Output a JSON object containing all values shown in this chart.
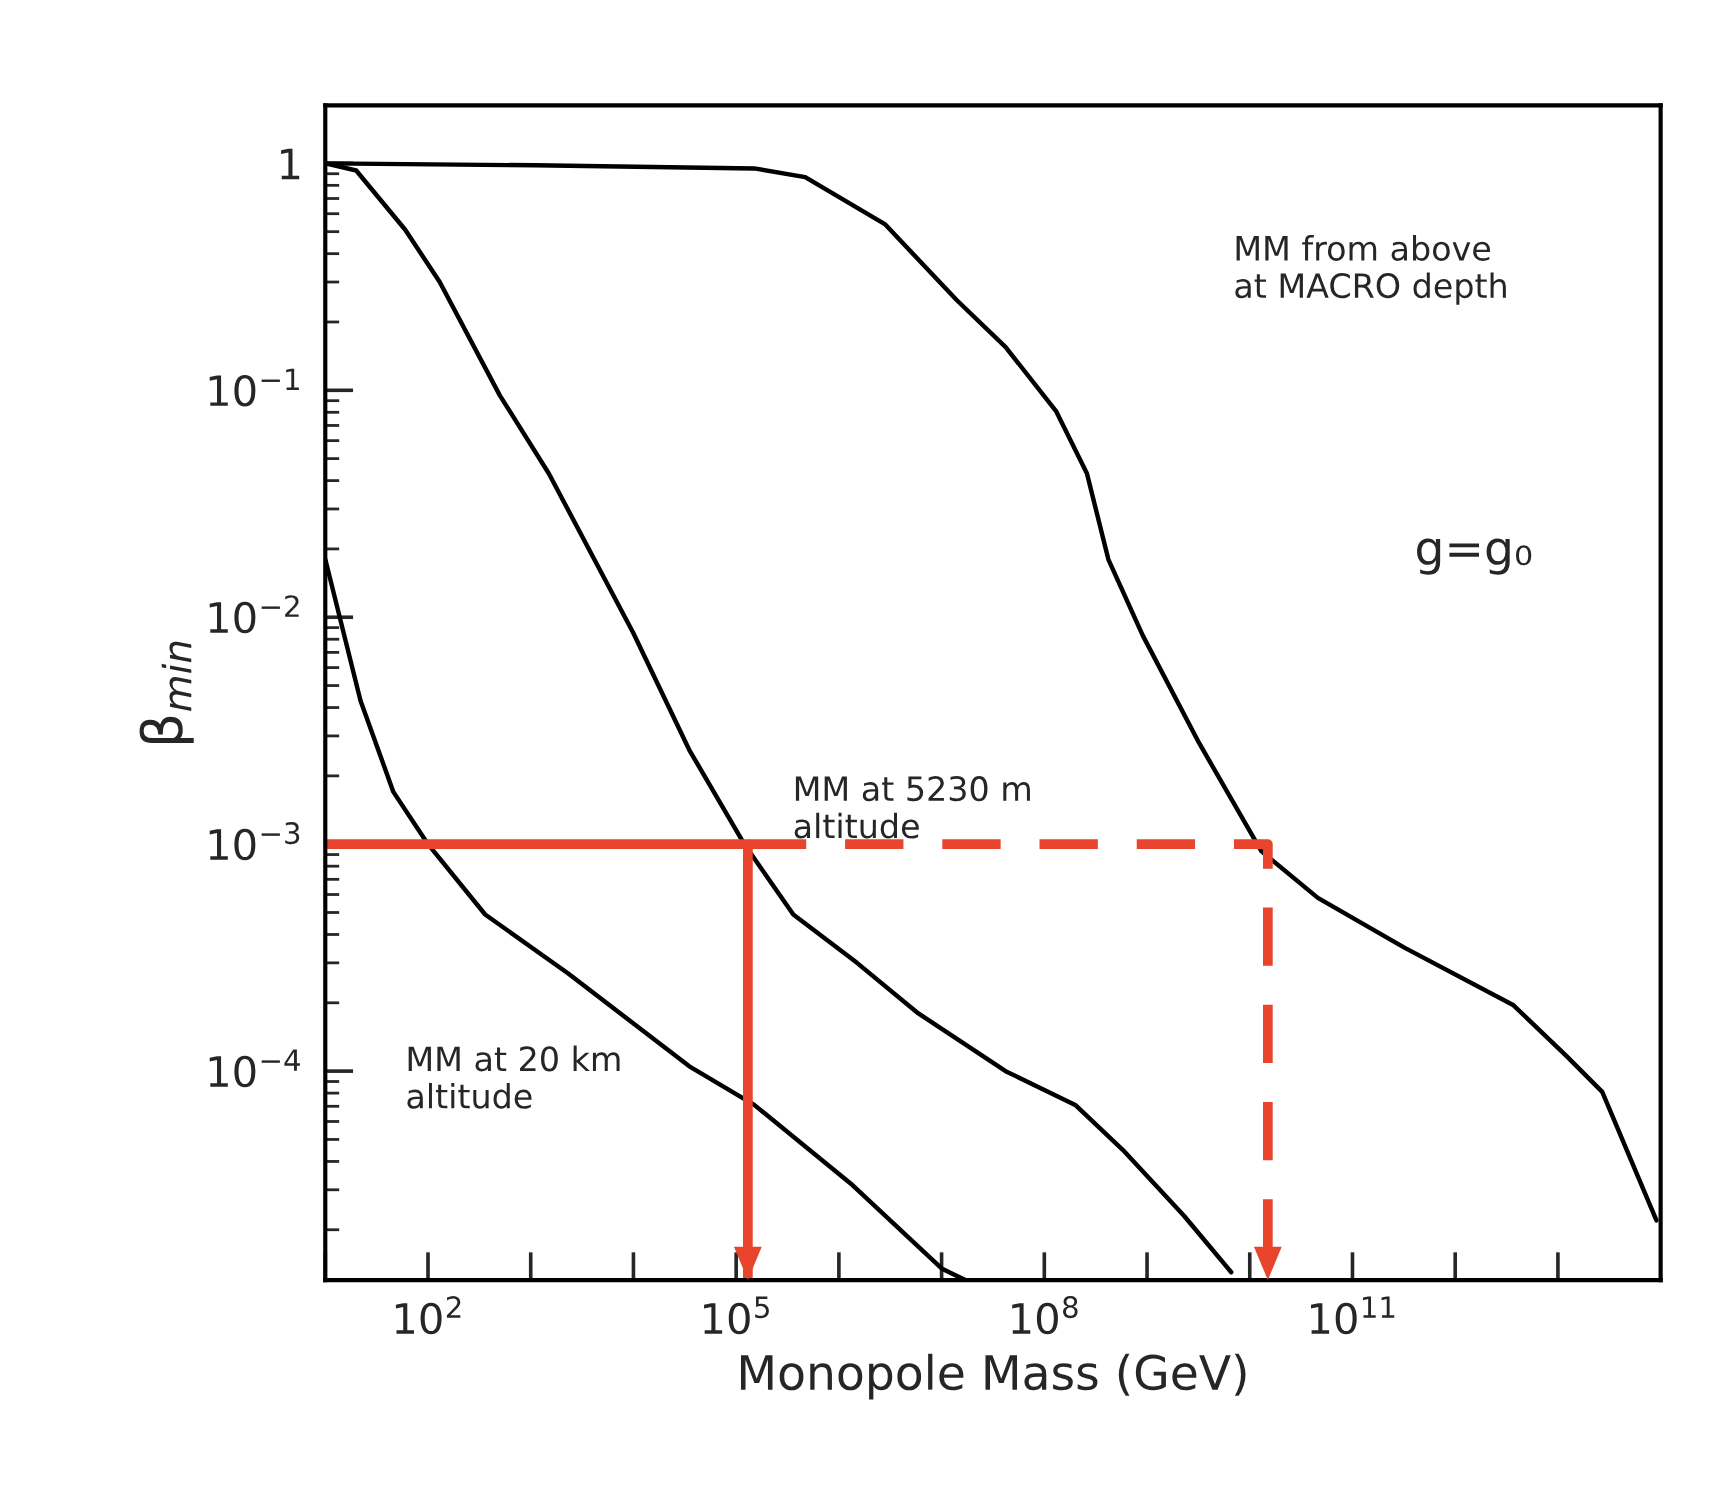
{
  "chart_data": {
    "type": "line",
    "xlabel": "Monopole Mass (GeV)",
    "ylabel": "β$_{min}$",
    "log": "xy",
    "xlim": [
      10,
      100000000000000.0
    ],
    "ylim": [
      1.2e-05,
      1.8
    ],
    "xticks": [
      {
        "value": 10,
        "label": null
      },
      {
        "value": 100,
        "label": "10$^{2}$"
      },
      {
        "value": 1000,
        "label": null
      },
      {
        "value": 10000,
        "label": null
      },
      {
        "value": 100000,
        "label": "10$^{5}$"
      },
      {
        "value": 1000000.0,
        "label": null
      },
      {
        "value": 10000000.0,
        "label": null
      },
      {
        "value": 100000000.0,
        "label": "10$^{8}$"
      },
      {
        "value": 1000000000.0,
        "label": null
      },
      {
        "value": 10000000000.0,
        "label": null
      },
      {
        "value": 100000000000.0,
        "label": "10$^{11}$"
      },
      {
        "value": 1000000000000.0,
        "label": null
      },
      {
        "value": 10000000000000.0,
        "label": null
      }
    ],
    "yticks": [
      {
        "value": 0.0001,
        "label": "10$^{−4}$"
      },
      {
        "value": 0.001,
        "label": "10$^{−3}$"
      },
      {
        "value": 0.01,
        "label": "10$^{−2}$"
      },
      {
        "value": 0.1,
        "label": "10$^{−1}$"
      },
      1
    ],
    "grid": false,
    "marker": "none",
    "series": [
      {
        "color": "#000000",
        "line_style": "solid",
        "x": [
          10,
          22,
          46,
          100,
          360,
          2300,
          35000,
          150000,
          1300000.0,
          10000000.0,
          17000000.0
        ],
        "values": [
          0.018,
          0.0043,
          0.0017,
          0.001,
          0.00049,
          0.00027,
          0.000105,
          7.1e-05,
          3.2e-05,
          1.35e-05,
          1.2e-05
        ]
      },
      {
        "color": "#000000",
        "line_style": "solid",
        "x": [
          10,
          20,
          60,
          130,
          500,
          1500,
          10000,
          35000,
          120000,
          360000,
          1500000.0,
          5900000.0,
          42000000.0,
          200000000.0,
          580000000.0,
          2300000000.0,
          6600000000.0
        ],
        "values": [
          1,
          0.93,
          0.51,
          0.3,
          0.095,
          0.043,
          0.0085,
          0.0026,
          0.001,
          0.00049,
          0.0003,
          0.00018,
          0.0001,
          7.1e-05,
          4.5e-05,
          2.3e-05,
          1.3e-05
        ]
      },
      {
        "color": "#000000",
        "line_style": "solid",
        "x": [
          10,
          1100,
          150000,
          470000,
          2800000.0,
          14000000.0,
          42000000.0,
          130000000.0,
          260000000.0,
          420000000.0,
          910000000.0,
          3200000000.0,
          13000000000.0,
          46000000000.0,
          320000000000.0,
          3700000000000.0,
          12000000000000.0,
          27000000000000.0,
          91000000000000.0
        ],
        "values": [
          1,
          0.98,
          0.95,
          0.87,
          0.54,
          0.25,
          0.155,
          0.081,
          0.043,
          0.018,
          0.0083,
          0.0028,
          0.00093,
          0.00058,
          0.00035,
          0.000195,
          0.000117,
          8.1e-05,
          2.2e-05
        ]
      },
      {
        "color": "#e8452c",
        "line_style": "solid",
        "x": [
          10,
          130000,
          130000
        ],
        "values": [
          0.001,
          0.001,
          1.2e-05
        ]
      },
      {
        "color": "#e8452c",
        "line_style": "dashed",
        "x": [
          130000,
          15000000000.0,
          15000000000.0
        ],
        "values": [
          0.001,
          0.001,
          1.2e-05
        ]
      }
    ],
    "annotations": [
      "MM from above\nat MACRO depth",
      "MM at 5230 m\naltitude",
      "MM at 20 km\naltitude",
      "g=g₀"
    ]
  }
}
